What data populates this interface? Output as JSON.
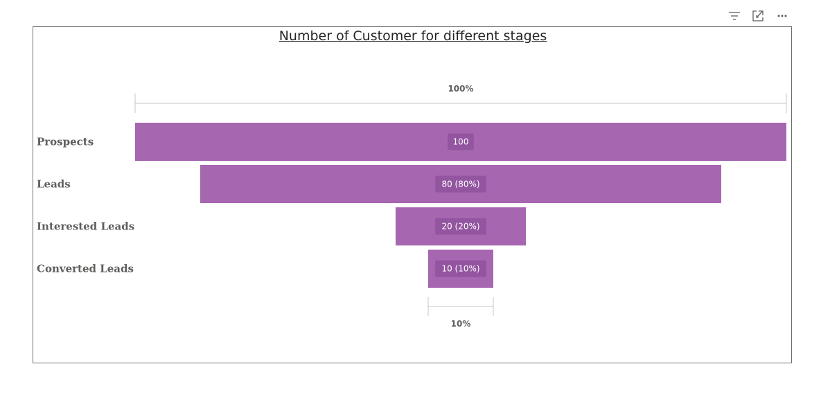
{
  "header": {
    "icons": [
      "filter-icon",
      "focus-mode-icon",
      "more-options-icon"
    ]
  },
  "chart_data": {
    "type": "funnel",
    "title": "Number of Customer for different stages",
    "categories": [
      "Prospects",
      "Leads",
      "Interested Leads",
      "Converted Leads"
    ],
    "values": [
      100,
      80,
      20,
      10
    ],
    "data_labels": [
      "100",
      "80 (80%)",
      "20 (20%)",
      "10 (10%)"
    ],
    "top_percent_label": "100%",
    "bottom_percent_label": "10%",
    "color": "#a666b0",
    "label_bg_color": "#9355a0"
  }
}
